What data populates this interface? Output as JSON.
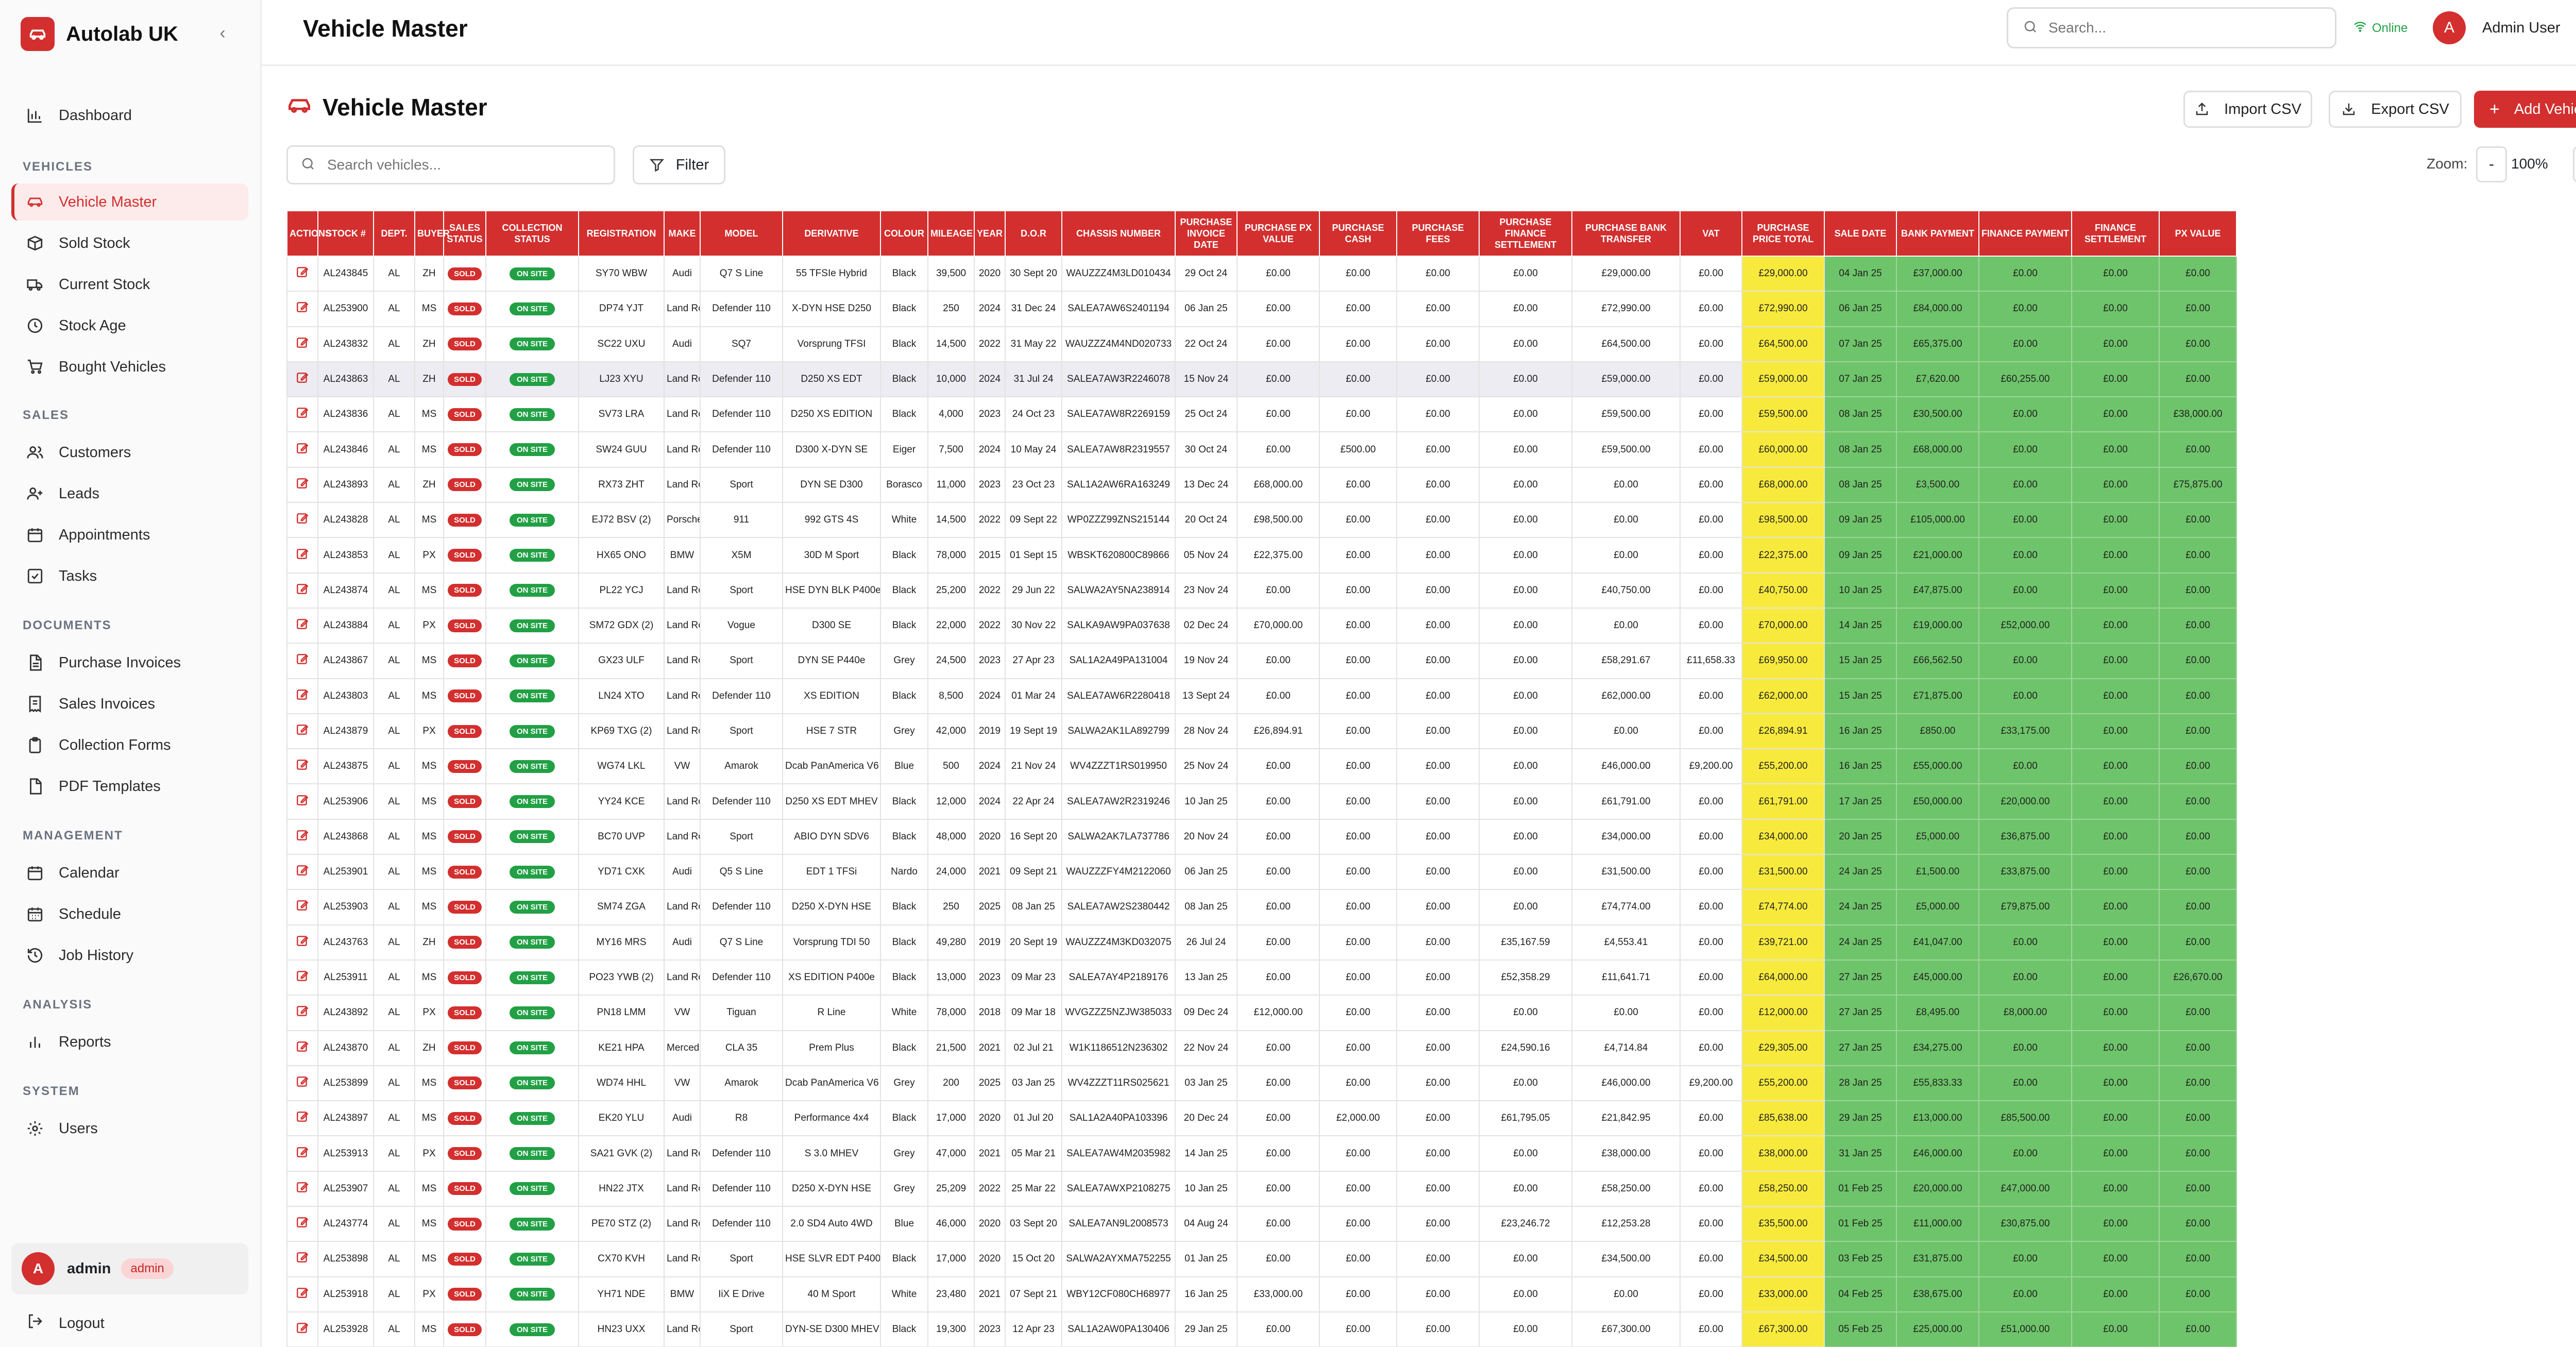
{
  "app": {
    "brand": "Autolab UK"
  },
  "topbar": {
    "title": "Vehicle Master",
    "search_placeholder": "Search...",
    "status": "Online",
    "user_initial": "A",
    "user_name": "Admin User"
  },
  "sidebar": {
    "dashboard": "Dashboard",
    "sections": {
      "vehicles": "VEHICLES",
      "sales": "SALES",
      "documents": "DOCUMENTS",
      "management": "MANAGEMENT",
      "analysis": "ANALYSIS",
      "system": "SYSTEM"
    },
    "items": {
      "vehicle_master": "Vehicle Master",
      "sold_stock": "Sold Stock",
      "current_stock": "Current Stock",
      "stock_age": "Stock Age",
      "bought_vehicles": "Bought Vehicles",
      "customers": "Customers",
      "leads": "Leads",
      "appointments": "Appointments",
      "tasks": "Tasks",
      "purchase_invoices": "Purchase Invoices",
      "sales_invoices": "Sales Invoices",
      "collection_forms": "Collection Forms",
      "pdf_templates": "PDF Templates",
      "calendar": "Calendar",
      "schedule": "Schedule",
      "job_history": "Job History",
      "reports": "Reports",
      "users": "Users"
    },
    "user": {
      "initial": "A",
      "name": "admin",
      "role": "admin"
    },
    "logout": "Logout"
  },
  "main": {
    "title": "Vehicle Master",
    "import_csv": "Import CSV",
    "export_csv": "Export CSV",
    "add_vehicle": "Add Vehicle",
    "search_placeholder": "Search vehicles...",
    "filter": "Filter",
    "zoom_label": "Zoom:",
    "zoom_minus": "-",
    "zoom_value": "100%",
    "zoom_plus": "+"
  },
  "table": {
    "columns": [
      "ACTIONS",
      "STOCK #",
      "DEPT.",
      "BUYER",
      "SALES STATUS",
      "COLLECTION STATUS",
      "REGISTRATION",
      "MAKE",
      "MODEL",
      "DERIVATIVE",
      "COLOUR",
      "MILEAGE",
      "YEAR",
      "D.O.R",
      "CHASSIS NUMBER",
      "PURCHASE INVOICE DATE",
      "PURCHASE PX VALUE",
      "PURCHASE CASH",
      "PURCHASE FEES",
      "PURCHASE FINANCE SETTLEMENT",
      "PURCHASE BANK TRANSFER",
      "VAT",
      "PURCHASE PRICE TOTAL",
      "SALE DATE",
      "BANK PAYMENT",
      "FINANCE PAYMENT",
      "FINANCE SETTLEMENT",
      "PX VALUE"
    ],
    "rows": [
      [
        "AL243845",
        "AL",
        "ZH",
        "SOLD",
        "ON SITE",
        "SY70 WBW",
        "Audi",
        "Q7 S Line",
        "55 TFSIe Hybrid",
        "Black",
        "39,500",
        "2020",
        "30 Sept 20",
        "WAUZZZ4M3LD010434",
        "29 Oct 24",
        "£0.00",
        "£0.00",
        "£0.00",
        "£0.00",
        "£29,000.00",
        "£0.00",
        "£29,000.00",
        "04 Jan 25",
        "£37,000.00",
        "£0.00",
        "£0.00",
        "£0.00"
      ],
      [
        "AL253900",
        "AL",
        "MS",
        "SOLD",
        "ON SITE",
        "DP74 YJT",
        "Land Rover",
        "Defender 110",
        "X-DYN HSE D250",
        "Black",
        "250",
        "2024",
        "31 Dec 24",
        "SALEA7AW6S2401194",
        "06 Jan 25",
        "£0.00",
        "£0.00",
        "£0.00",
        "£0.00",
        "£72,990.00",
        "£0.00",
        "£72,990.00",
        "06 Jan 25",
        "£84,000.00",
        "£0.00",
        "£0.00",
        "£0.00"
      ],
      [
        "AL243832",
        "AL",
        "ZH",
        "SOLD",
        "ON SITE",
        "SC22 UXU",
        "Audi",
        "SQ7",
        "Vorsprung TFSI",
        "Black",
        "14,500",
        "2022",
        "31 May 22",
        "WAUZZZ4M4ND020733",
        "22 Oct 24",
        "£0.00",
        "£0.00",
        "£0.00",
        "£0.00",
        "£64,500.00",
        "£0.00",
        "£64,500.00",
        "07 Jan 25",
        "£65,375.00",
        "£0.00",
        "£0.00",
        "£0.00"
      ],
      [
        "AL243863",
        "AL",
        "ZH",
        "SOLD",
        "ON SITE",
        "LJ23 XYU",
        "Land Rover",
        "Defender 110",
        "D250 XS EDT",
        "Black",
        "10,000",
        "2024",
        "31 Jul 24",
        "SALEA7AW3R2246078",
        "15 Nov 24",
        "£0.00",
        "£0.00",
        "£0.00",
        "£0.00",
        "£59,000.00",
        "£0.00",
        "£59,000.00",
        "07 Jan 25",
        "£7,620.00",
        "£60,255.00",
        "£0.00",
        "£0.00"
      ],
      [
        "AL243836",
        "AL",
        "MS",
        "SOLD",
        "ON SITE",
        "SV73 LRA",
        "Land Rover",
        "Defender 110",
        "D250 XS EDITION",
        "Black",
        "4,000",
        "2023",
        "24 Oct 23",
        "SALEA7AW8R2269159",
        "25 Oct 24",
        "£0.00",
        "£0.00",
        "£0.00",
        "£0.00",
        "£59,500.00",
        "£0.00",
        "£59,500.00",
        "08 Jan 25",
        "£30,500.00",
        "£0.00",
        "£0.00",
        "£38,000.00"
      ],
      [
        "AL243846",
        "AL",
        "MS",
        "SOLD",
        "ON SITE",
        "SW24 GUU",
        "Land Rover",
        "Defender 110",
        "D300 X-DYN SE",
        "Eiger",
        "7,500",
        "2024",
        "10 May 24",
        "SALEA7AW8R2319557",
        "30 Oct 24",
        "£0.00",
        "£500.00",
        "£0.00",
        "£0.00",
        "£59,500.00",
        "£0.00",
        "£60,000.00",
        "08 Jan 25",
        "£68,000.00",
        "£0.00",
        "£0.00",
        "£0.00"
      ],
      [
        "AL243893",
        "AL",
        "ZH",
        "SOLD",
        "ON SITE",
        "RX73 ZHT",
        "Land Rover",
        "Sport",
        "DYN SE D300",
        "Borasco",
        "11,000",
        "2023",
        "23 Oct 23",
        "SAL1A2AW6RA163249",
        "13 Dec 24",
        "£68,000.00",
        "£0.00",
        "£0.00",
        "£0.00",
        "£0.00",
        "£0.00",
        "£68,000.00",
        "08 Jan 25",
        "£3,500.00",
        "£0.00",
        "£0.00",
        "£75,875.00"
      ],
      [
        "AL243828",
        "AL",
        "MS",
        "SOLD",
        "ON SITE",
        "EJ72 BSV (2)",
        "Porsche",
        "911",
        "992 GTS 4S",
        "White",
        "14,500",
        "2022",
        "09 Sept 22",
        "WP0ZZZ99ZNS215144",
        "20 Oct 24",
        "£98,500.00",
        "£0.00",
        "£0.00",
        "£0.00",
        "£0.00",
        "£0.00",
        "£98,500.00",
        "09 Jan 25",
        "£105,000.00",
        "£0.00",
        "£0.00",
        "£0.00"
      ],
      [
        "AL243853",
        "AL",
        "PX",
        "SOLD",
        "ON SITE",
        "HX65 ONO",
        "BMW",
        "X5M",
        "30D M Sport",
        "Black",
        "78,000",
        "2015",
        "01 Sept 15",
        "WBSKT620800C89866",
        "05 Nov 24",
        "£22,375.00",
        "£0.00",
        "£0.00",
        "£0.00",
        "£0.00",
        "£0.00",
        "£22,375.00",
        "09 Jan 25",
        "£21,000.00",
        "£0.00",
        "£0.00",
        "£0.00"
      ],
      [
        "AL243874",
        "AL",
        "MS",
        "SOLD",
        "ON SITE",
        "PL22 YCJ",
        "Land Rover",
        "Sport",
        "HSE DYN BLK P400e",
        "Black",
        "25,200",
        "2022",
        "29 Jun 22",
        "SALWA2AY5NA238914",
        "23 Nov 24",
        "£0.00",
        "£0.00",
        "£0.00",
        "£0.00",
        "£40,750.00",
        "£0.00",
        "£40,750.00",
        "10 Jan 25",
        "£47,875.00",
        "£0.00",
        "£0.00",
        "£0.00"
      ],
      [
        "AL243884",
        "AL",
        "PX",
        "SOLD",
        "ON SITE",
        "SM72 GDX (2)",
        "Land Rover",
        "Vogue",
        "D300 SE",
        "Black",
        "22,000",
        "2022",
        "30 Nov 22",
        "SALKA9AW9PA037638",
        "02 Dec 24",
        "£70,000.00",
        "£0.00",
        "£0.00",
        "£0.00",
        "£0.00",
        "£0.00",
        "£70,000.00",
        "14 Jan 25",
        "£19,000.00",
        "£52,000.00",
        "£0.00",
        "£0.00"
      ],
      [
        "AL243867",
        "AL",
        "MS",
        "SOLD",
        "ON SITE",
        "GX23 ULF",
        "Land Rover",
        "Sport",
        "DYN SE P440e",
        "Grey",
        "24,500",
        "2023",
        "27 Apr 23",
        "SAL1A2A49PA131004",
        "19 Nov 24",
        "£0.00",
        "£0.00",
        "£0.00",
        "£0.00",
        "£58,291.67",
        "£11,658.33",
        "£69,950.00",
        "15 Jan 25",
        "£66,562.50",
        "£0.00",
        "£0.00",
        "£0.00"
      ],
      [
        "AL243803",
        "AL",
        "MS",
        "SOLD",
        "ON SITE",
        "LN24 XTO",
        "Land Rover",
        "Defender 110",
        "XS EDITION",
        "Black",
        "8,500",
        "2024",
        "01 Mar 24",
        "SALEA7AW6R2280418",
        "13 Sept 24",
        "£0.00",
        "£0.00",
        "£0.00",
        "£0.00",
        "£62,000.00",
        "£0.00",
        "£62,000.00",
        "15 Jan 25",
        "£71,875.00",
        "£0.00",
        "£0.00",
        "£0.00"
      ],
      [
        "AL243879",
        "AL",
        "PX",
        "SOLD",
        "ON SITE",
        "KP69 TXG (2)",
        "Land Rover",
        "Sport",
        "HSE 7 STR",
        "Grey",
        "42,000",
        "2019",
        "19 Sept 19",
        "SALWA2AK1LA892799",
        "28 Nov 24",
        "£26,894.91",
        "£0.00",
        "£0.00",
        "£0.00",
        "£0.00",
        "£0.00",
        "£26,894.91",
        "16 Jan 25",
        "£850.00",
        "£33,175.00",
        "£0.00",
        "£0.00"
      ],
      [
        "AL243875",
        "AL",
        "MS",
        "SOLD",
        "ON SITE",
        "WG74 LKL",
        "VW",
        "Amarok",
        "Dcab PanAmerica V6",
        "Blue",
        "500",
        "2024",
        "21 Nov 24",
        "WV4ZZZT1RS019950",
        "25 Nov 24",
        "£0.00",
        "£0.00",
        "£0.00",
        "£0.00",
        "£46,000.00",
        "£9,200.00",
        "£55,200.00",
        "16 Jan 25",
        "£55,000.00",
        "£0.00",
        "£0.00",
        "£0.00"
      ],
      [
        "AL253906",
        "AL",
        "MS",
        "SOLD",
        "ON SITE",
        "YY24 KCE",
        "Land Rover",
        "Defender 110",
        "D250 XS EDT MHEV",
        "Black",
        "12,000",
        "2024",
        "22 Apr 24",
        "SALEA7AW2R2319246",
        "10 Jan 25",
        "£0.00",
        "£0.00",
        "£0.00",
        "£0.00",
        "£61,791.00",
        "£0.00",
        "£61,791.00",
        "17 Jan 25",
        "£50,000.00",
        "£20,000.00",
        "£0.00",
        "£0.00"
      ],
      [
        "AL243868",
        "AL",
        "MS",
        "SOLD",
        "ON SITE",
        "BC70 UVP",
        "Land Rover",
        "Sport",
        "ABIO DYN SDV6",
        "Black",
        "48,000",
        "2020",
        "16 Sept 20",
        "SALWA2AK7LA737786",
        "20 Nov 24",
        "£0.00",
        "£0.00",
        "£0.00",
        "£0.00",
        "£34,000.00",
        "£0.00",
        "£34,000.00",
        "20 Jan 25",
        "£5,000.00",
        "£36,875.00",
        "£0.00",
        "£0.00"
      ],
      [
        "AL253901",
        "AL",
        "MS",
        "SOLD",
        "ON SITE",
        "YD71 CXK",
        "Audi",
        "Q5 S Line",
        "EDT 1 TFSi",
        "Nardo",
        "24,000",
        "2021",
        "09 Sept 21",
        "WAUZZZFY4M2122060",
        "06 Jan 25",
        "£0.00",
        "£0.00",
        "£0.00",
        "£0.00",
        "£31,500.00",
        "£0.00",
        "£31,500.00",
        "24 Jan 25",
        "£1,500.00",
        "£33,875.00",
        "£0.00",
        "£0.00"
      ],
      [
        "AL253903",
        "AL",
        "MS",
        "SOLD",
        "ON SITE",
        "SM74 ZGA",
        "Land Rover",
        "Defender 110",
        "D250 X-DYN HSE",
        "Black",
        "250",
        "2025",
        "08 Jan 25",
        "SALEA7AW2S2380442",
        "08 Jan 25",
        "£0.00",
        "£0.00",
        "£0.00",
        "£0.00",
        "£74,774.00",
        "£0.00",
        "£74,774.00",
        "24 Jan 25",
        "£5,000.00",
        "£79,875.00",
        "£0.00",
        "£0.00"
      ],
      [
        "AL243763",
        "AL",
        "ZH",
        "SOLD",
        "ON SITE",
        "MY16 MRS",
        "Audi",
        "Q7 S Line",
        "Vorsprung TDI 50",
        "Black",
        "49,280",
        "2019",
        "20 Sept 19",
        "WAUZZZ4M3KD032075",
        "26 Jul 24",
        "£0.00",
        "£0.00",
        "£0.00",
        "£35,167.59",
        "£4,553.41",
        "£0.00",
        "£39,721.00",
        "24 Jan 25",
        "£41,047.00",
        "£0.00",
        "£0.00",
        "£0.00"
      ],
      [
        "AL253911",
        "AL",
        "MS",
        "SOLD",
        "ON SITE",
        "PO23 YWB (2)",
        "Land Rover",
        "Defender 110",
        "XS EDITION P400e",
        "Black",
        "13,000",
        "2023",
        "09 Mar 23",
        "SALEA7AY4P2189176",
        "13 Jan 25",
        "£0.00",
        "£0.00",
        "£0.00",
        "£52,358.29",
        "£11,641.71",
        "£0.00",
        "£64,000.00",
        "27 Jan 25",
        "£45,000.00",
        "£0.00",
        "£0.00",
        "£26,670.00"
      ],
      [
        "AL243892",
        "AL",
        "PX",
        "SOLD",
        "ON SITE",
        "PN18 LMM",
        "VW",
        "Tiguan",
        "R Line",
        "White",
        "78,000",
        "2018",
        "09 Mar 18",
        "WVGZZZ5NZJW385033",
        "09 Dec 24",
        "£12,000.00",
        "£0.00",
        "£0.00",
        "£0.00",
        "£0.00",
        "£0.00",
        "£12,000.00",
        "27 Jan 25",
        "£8,495.00",
        "£8,000.00",
        "£0.00",
        "£0.00"
      ],
      [
        "AL243870",
        "AL",
        "ZH",
        "SOLD",
        "ON SITE",
        "KE21 HPA",
        "Mercedes",
        "CLA 35",
        "Prem Plus",
        "Black",
        "21,500",
        "2021",
        "02 Jul 21",
        "W1K1186512N236302",
        "22 Nov 24",
        "£0.00",
        "£0.00",
        "£0.00",
        "£24,590.16",
        "£4,714.84",
        "£0.00",
        "£29,305.00",
        "27 Jan 25",
        "£34,275.00",
        "£0.00",
        "£0.00",
        "£0.00"
      ],
      [
        "AL253899",
        "AL",
        "MS",
        "SOLD",
        "ON SITE",
        "WD74 HHL",
        "VW",
        "Amarok",
        "Dcab PanAmerica V6",
        "Grey",
        "200",
        "2025",
        "03 Jan 25",
        "WV4ZZZT11RS025621",
        "03 Jan 25",
        "£0.00",
        "£0.00",
        "£0.00",
        "£0.00",
        "£46,000.00",
        "£9,200.00",
        "£55,200.00",
        "28 Jan 25",
        "£55,833.33",
        "£0.00",
        "£0.00",
        "£0.00"
      ],
      [
        "AL243897",
        "AL",
        "MS",
        "SOLD",
        "ON SITE",
        "EK20 YLU",
        "Audi",
        "R8",
        "Performance 4x4",
        "Black",
        "17,000",
        "2020",
        "01 Jul 20",
        "SAL1A2A40PA103396",
        "20 Dec 24",
        "£0.00",
        "£2,000.00",
        "£0.00",
        "£61,795.05",
        "£21,842.95",
        "£0.00",
        "£85,638.00",
        "29 Jan 25",
        "£13,000.00",
        "£85,500.00",
        "£0.00",
        "£0.00"
      ],
      [
        "AL253913",
        "AL",
        "PX",
        "SOLD",
        "ON SITE",
        "SA21 GVK (2)",
        "Land Rover",
        "Defender 110",
        "S 3.0 MHEV",
        "Grey",
        "47,000",
        "2021",
        "05 Mar 21",
        "SALEA7AW4M2035982",
        "14 Jan 25",
        "£0.00",
        "£0.00",
        "£0.00",
        "£0.00",
        "£38,000.00",
        "£0.00",
        "£38,000.00",
        "31 Jan 25",
        "£46,000.00",
        "£0.00",
        "£0.00",
        "£0.00"
      ],
      [
        "AL253907",
        "AL",
        "MS",
        "SOLD",
        "ON SITE",
        "HN22 JTX",
        "Land Rover",
        "Defender 110",
        "D250 X-DYN HSE",
        "Grey",
        "25,209",
        "2022",
        "25 Mar 22",
        "SALEA7AWXP2108275",
        "10 Jan 25",
        "£0.00",
        "£0.00",
        "£0.00",
        "£0.00",
        "£58,250.00",
        "£0.00",
        "£58,250.00",
        "01 Feb 25",
        "£20,000.00",
        "£47,000.00",
        "£0.00",
        "£0.00"
      ],
      [
        "AL243774",
        "AL",
        "MS",
        "SOLD",
        "ON SITE",
        "PE70 STZ (2)",
        "Land Rover",
        "Defender 110",
        "2.0 SD4 Auto 4WD",
        "Blue",
        "46,000",
        "2020",
        "03 Sept 20",
        "SALEA7AN9L2008573",
        "04 Aug 24",
        "£0.00",
        "£0.00",
        "£0.00",
        "£23,246.72",
        "£12,253.28",
        "£0.00",
        "£35,500.00",
        "01 Feb 25",
        "£11,000.00",
        "£30,875.00",
        "£0.00",
        "£0.00"
      ],
      [
        "AL253898",
        "AL",
        "MS",
        "SOLD",
        "ON SITE",
        "CX70 KVH",
        "Land Rover",
        "Sport",
        "HSE SLVR EDT P400e",
        "Black",
        "17,000",
        "2020",
        "15 Oct 20",
        "SALWA2AYXMA752255",
        "01 Jan 25",
        "£0.00",
        "£0.00",
        "£0.00",
        "£0.00",
        "£34,500.00",
        "£0.00",
        "£34,500.00",
        "03 Feb 25",
        "£31,875.00",
        "£0.00",
        "£0.00",
        "£0.00"
      ],
      [
        "AL253918",
        "AL",
        "PX",
        "SOLD",
        "ON SITE",
        "YH71 NDE",
        "BMW",
        "IiX E Drive",
        "40 M Sport",
        "White",
        "23,480",
        "2021",
        "07 Sept 21",
        "WBY12CF080CH68977",
        "16 Jan 25",
        "£33,000.00",
        "£0.00",
        "£0.00",
        "£0.00",
        "£0.00",
        "£0.00",
        "£33,000.00",
        "04 Feb 25",
        "£38,675.00",
        "£0.00",
        "£0.00",
        "£0.00"
      ],
      [
        "AL253928",
        "AL",
        "MS",
        "SOLD",
        "ON SITE",
        "HN23 UXX",
        "Land Rover",
        "Sport",
        "DYN-SE D300 MHEV",
        "Black",
        "19,300",
        "2023",
        "12 Apr 23",
        "SAL1A2AW0PA130406",
        "29 Jan 25",
        "£0.00",
        "£0.00",
        "£0.00",
        "£0.00",
        "£67,300.00",
        "£0.00",
        "£67,300.00",
        "05 Feb 25",
        "£25,000.00",
        "£51,000.00",
        "£0.00",
        "£0.00"
      ]
    ]
  }
}
